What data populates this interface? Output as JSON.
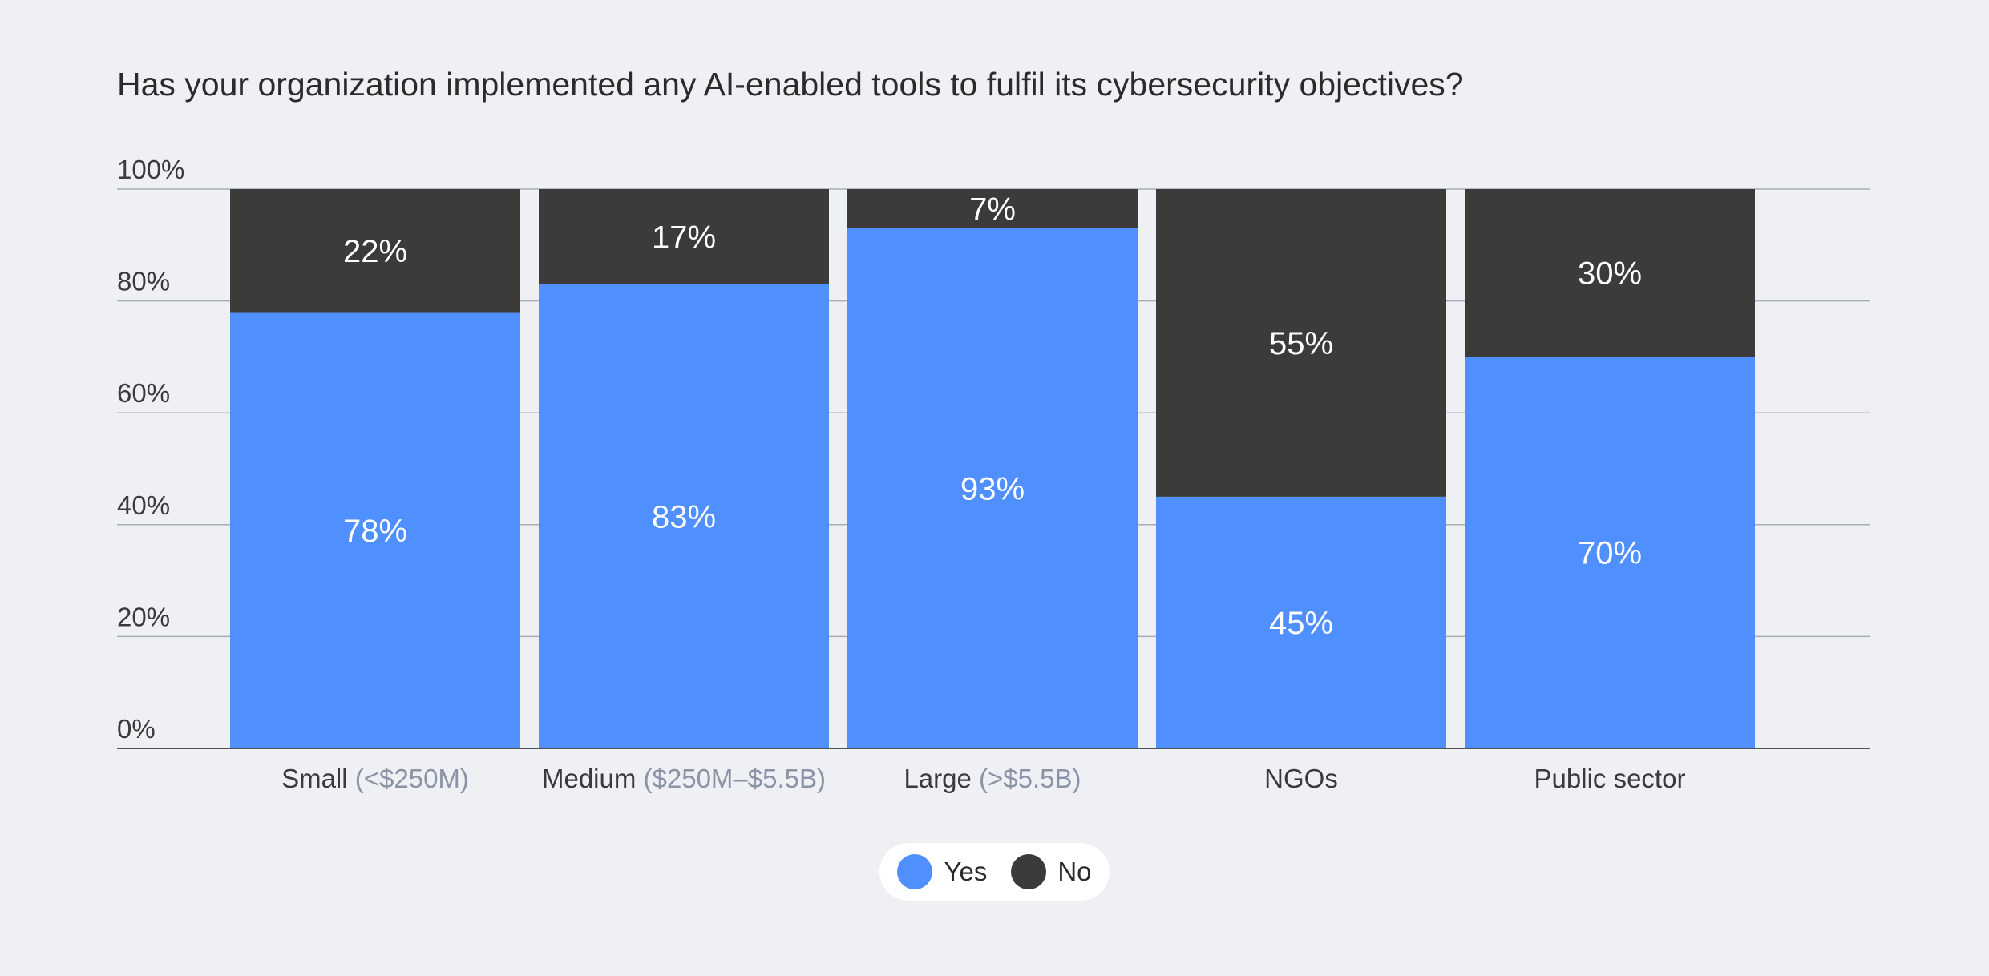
{
  "title": "Has your organization implemented any AI-enabled tools to fulfil its cybersecurity objectives?",
  "colors": {
    "yes": "#4f8ffe",
    "no": "#3c3b39",
    "grid": "#a9adb6",
    "axis": "#555555"
  },
  "legend": {
    "items": [
      {
        "label": "Yes",
        "color": "#4f8ffe"
      },
      {
        "label": "No",
        "color": "#3c3b39"
      }
    ]
  },
  "chart_data": {
    "type": "bar",
    "stacked": true,
    "ylim": [
      0,
      100
    ],
    "yticks": [
      "0%",
      "20%",
      "40%",
      "60%",
      "80%",
      "100%"
    ],
    "categories": [
      {
        "main": "Small",
        "sub": "(<$250M)"
      },
      {
        "main": "Medium",
        "sub": "($250M–$5.5B)"
      },
      {
        "main": "Large",
        "sub": "(>$5.5B)"
      },
      {
        "main": "NGOs",
        "sub": ""
      },
      {
        "main": "Public sector",
        "sub": ""
      }
    ],
    "series": [
      {
        "name": "Yes",
        "values": [
          78,
          83,
          93,
          45,
          70
        ],
        "labels": [
          "78%",
          "83%",
          "93%",
          "45%",
          "70%"
        ]
      },
      {
        "name": "No",
        "values": [
          22,
          17,
          7,
          55,
          30
        ],
        "labels": [
          "22%",
          "17%",
          "7%",
          "55%",
          "30%"
        ]
      }
    ],
    "grid": true,
    "legend_position": "bottom-center"
  }
}
